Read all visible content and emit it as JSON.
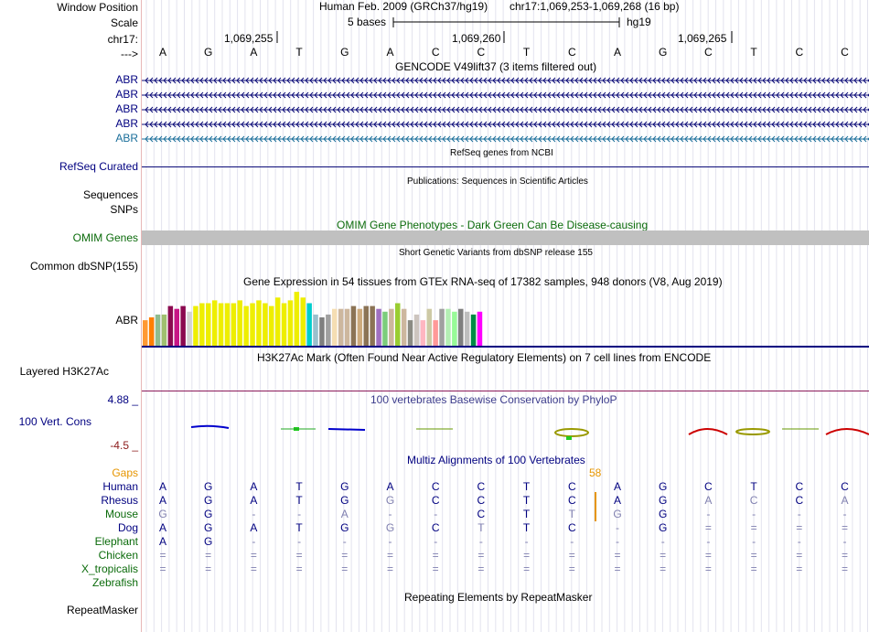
{
  "left": {
    "window_position": "Window Position",
    "scale": "Scale",
    "chrom": "chr17:",
    "arrow": "--->",
    "gencode_rows": [
      "ABR",
      "ABR",
      "ABR",
      "ABR",
      "ABR"
    ],
    "refseq_curated": "RefSeq Curated",
    "sequences": "Sequences",
    "snps": "SNPs",
    "omim_genes": "OMIM Genes",
    "common_dbsnp": "Common dbSNP(155)",
    "gtex_gene": "ABR",
    "layered_h3k27ac": "Layered H3K27Ac",
    "phylop_max": "4.88 _",
    "phylop_label": "100 Vert. Cons",
    "phylop_min": "-4.5 _",
    "gaps": "Gaps",
    "species": [
      "Human",
      "Rhesus",
      "Mouse",
      "Dog",
      "Elephant",
      "Chicken",
      "X_tropicalis",
      "Zebrafish"
    ],
    "repeatmasker": "RepeatMasker"
  },
  "header": {
    "assembly": "Human Feb. 2009 (GRCh37/hg19)",
    "position": "chr17:1,069,253-1,069,268 (16 bp)",
    "scale_text": "5 bases",
    "db": "hg19",
    "ticks": [
      "1,069,255",
      "1,069,260",
      "1,069,265"
    ]
  },
  "sequence": [
    "A",
    "G",
    "A",
    "T",
    "G",
    "A",
    "C",
    "C",
    "T",
    "C",
    "A",
    "G",
    "C",
    "T",
    "C",
    "C"
  ],
  "tracks": {
    "gencode": "GENCODE V49lift37 (3 items filtered out)",
    "refseq": "RefSeq genes from NCBI",
    "publications": "Publications: Sequences in Scientific Articles",
    "omim": "OMIM Gene Phenotypes - Dark Green Can Be Disease-causing",
    "dbsnp": "Short Genetic Variants from dbSNP release 155",
    "gtex": "Gene Expression in 54 tissues from GTEx RNA-seq of 17382 samples, 948 donors (V8, Aug 2019)",
    "h3k27ac": "H3K27Ac Mark (Often Found Near Active Regulatory Elements) on 7 cell lines from ENCODE",
    "phylop": "100 vertebrates Basewise Conservation by PhyloP",
    "multiz": "Multiz Alignments of 100 Vertebrates",
    "gap_value": "58",
    "repeatmasker": "Repeating Elements by RepeatMasker"
  },
  "alignment": {
    "Human": [
      "A",
      "G",
      "A",
      "T",
      "G",
      "A",
      "C",
      "C",
      "T",
      "C",
      "A",
      "G",
      "C",
      "T",
      "C",
      "C"
    ],
    "Rhesus": [
      "A",
      "G",
      "A",
      "T",
      "G",
      "G",
      "C",
      "C",
      "T",
      "C",
      "A",
      "G",
      "A",
      "C",
      "C",
      "A"
    ],
    "Mouse": [
      "G",
      "G",
      "-",
      "-",
      "A",
      "-",
      "-",
      "C",
      "T",
      "T",
      "G",
      "G",
      "-",
      "-",
      "-",
      "-"
    ],
    "Dog": [
      "A",
      "G",
      "A",
      "T",
      "G",
      "G",
      "C",
      "T",
      "T",
      "C",
      "-",
      "G",
      "=",
      "=",
      "=",
      "="
    ],
    "Elephant": [
      "A",
      "G",
      "-",
      "-",
      "-",
      "-",
      "-",
      "-",
      "-",
      "-",
      "-",
      "-",
      "-",
      "-",
      "-",
      "-"
    ],
    "Chicken": [
      "=",
      "=",
      "=",
      "=",
      "=",
      "=",
      "=",
      "=",
      "=",
      "=",
      "=",
      "=",
      "=",
      "=",
      "=",
      "="
    ],
    "X_tropicalis": [
      "=",
      "=",
      "=",
      "=",
      "=",
      "=",
      "=",
      "=",
      "=",
      "=",
      "=",
      "=",
      "=",
      "=",
      "=",
      "="
    ]
  },
  "gtex_colors": [
    "#ff9933",
    "#ff7f00",
    "#8fbc8f",
    "#a0c070",
    "#8b0a50",
    "#c71585",
    "#8b0a50",
    "#d3d3d3",
    "#eeee00",
    "#eeee00",
    "#eeee00",
    "#eeee00",
    "#eeee00",
    "#eeee00",
    "#eeee00",
    "#eeee00",
    "#eeee00",
    "#eeee00",
    "#eeee00",
    "#eeee00",
    "#eeee00",
    "#eeee00",
    "#eeee00",
    "#eeee00",
    "#eeee00",
    "#eeee00",
    "#00cdcd",
    "#9ac0cd",
    "#7f7f7f",
    "#a0a0a0",
    "#f5deb3",
    "#cdb79e",
    "#cdb79e",
    "#8b7355",
    "#cdaa7d",
    "#8b7355",
    "#8b7355",
    "#a070c0",
    "#7ccd7c",
    "#cdb79e",
    "#9acd32",
    "#cdb79e",
    "#8b8b83",
    "#cdc5bf",
    "#ffb6c1",
    "#cdc9a5",
    "#ff9999",
    "#a0a0a0",
    "#b4eeb4",
    "#98fb98",
    "#7f7f7f",
    "#bebebe",
    "#008b45",
    "#ff00ff"
  ],
  "gtex_values": [
    18,
    20,
    22,
    22,
    28,
    26,
    28,
    24,
    28,
    30,
    30,
    32,
    30,
    30,
    30,
    32,
    28,
    30,
    32,
    30,
    28,
    34,
    30,
    32,
    38,
    34,
    30,
    22,
    20,
    22,
    26,
    26,
    26,
    28,
    26,
    28,
    28,
    26,
    24,
    26,
    30,
    26,
    18,
    22,
    18,
    26,
    18,
    26,
    26,
    24,
    26,
    24,
    22,
    24
  ]
}
